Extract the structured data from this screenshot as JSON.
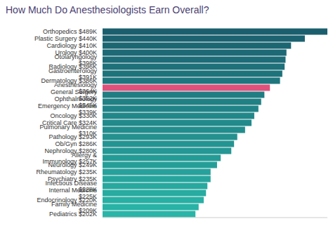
{
  "chart_data": {
    "type": "bar",
    "title": "How Much Do Anesthesiologists Earn Overall?",
    "orientation": "horizontal",
    "tick_labels": "y",
    "grid": false,
    "categories": [
      "Orthopedics $489K",
      "Plastic Surgery $440K",
      "Cardiology $410K",
      "Urology $400K",
      "Otolaryngology $398K",
      "Radiology $396K",
      "Gastroenterology $391K",
      "Dermatology $386K",
      "Anesthesiology $364K",
      "General Surgery $352K",
      "Ophthalmology $345K",
      "Emergency Medicine $339K",
      "Oncology $330K",
      "Critical Care $324K",
      "Pulmonary Medicine $310K",
      "Pathology $293K",
      "Ob/Gyn $286K",
      "Nephrology $280K",
      "Allergy & Immunology $257K",
      "Neurology $249K",
      "Rheumatology $235K",
      "Psychiatry $235K",
      "Infectious Disease $228K",
      "Internal Medicine $225K",
      "Endocrinology $220K",
      "Family Medicine $209K",
      "Pediatrics $202K"
    ],
    "values": [
      489,
      440,
      410,
      400,
      398,
      396,
      391,
      386,
      364,
      352,
      345,
      339,
      330,
      324,
      310,
      293,
      286,
      280,
      257,
      249,
      235,
      235,
      228,
      225,
      220,
      209,
      202
    ],
    "colors": [
      "#1b5f6e",
      "#1c6270",
      "#1c6672",
      "#1d6975",
      "#1d6c77",
      "#1e7079",
      "#1e737b",
      "#1f767e",
      "#e0507a",
      "#207d82",
      "#218084",
      "#218387",
      "#228789",
      "#228a8b",
      "#238d8d",
      "#24918f",
      "#249492",
      "#259794",
      "#259b96",
      "#269e98",
      "#27a19b",
      "#27a59d",
      "#28a89f",
      "#28aba1",
      "#29afa4",
      "#29b2a6",
      "#2ab5a8"
    ],
    "xlim": [
      0,
      489
    ]
  }
}
